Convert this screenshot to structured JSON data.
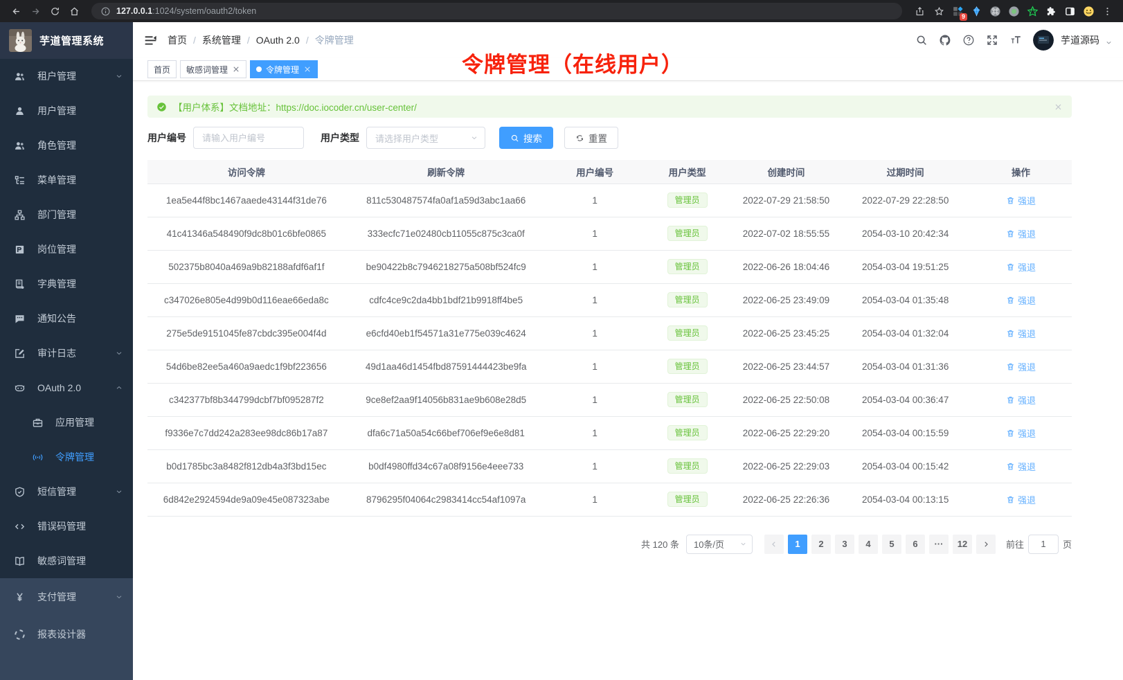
{
  "browser": {
    "url_host": "127.0.0.1",
    "url_path": ":1024/system/oauth2/token",
    "extension_badge": "9",
    "extension_icons": [
      "grid-ext-icon",
      "gem-icon",
      "cmd-circle-icon",
      "record-circle-icon",
      "star-green-icon",
      "puzzle-icon",
      "sidepanel-icon",
      "smiley-icon"
    ]
  },
  "app": {
    "title": "芋道管理系统",
    "user_name": "芋道源码",
    "annotation": "令牌管理（在线用户）",
    "breadcrumb": [
      "首页",
      "系统管理",
      "OAuth 2.0",
      "令牌管理"
    ],
    "tabs": [
      {
        "id": "home",
        "label": "首页",
        "closable": false,
        "active": false
      },
      {
        "id": "sensitive-word",
        "label": "敏感词管理",
        "closable": true,
        "active": false
      },
      {
        "id": "token",
        "label": "令牌管理",
        "closable": true,
        "active": true
      }
    ]
  },
  "sidebar": {
    "sections": [
      {
        "id": "menu-top",
        "items": [
          {
            "id": "tenant",
            "label": "租户管理",
            "icon": "users-icon",
            "chevron": "down"
          },
          {
            "id": "user",
            "label": "用户管理",
            "icon": "user-icon"
          },
          {
            "id": "role",
            "label": "角色管理",
            "icon": "users-icon"
          },
          {
            "id": "menu",
            "label": "菜单管理",
            "icon": "menu-icon"
          },
          {
            "id": "dept",
            "label": "部门管理",
            "icon": "org-icon"
          },
          {
            "id": "post",
            "label": "岗位管理",
            "icon": "badge-icon"
          },
          {
            "id": "dict",
            "label": "字典管理",
            "icon": "dict-icon"
          },
          {
            "id": "notice",
            "label": "通知公告",
            "icon": "message-icon"
          },
          {
            "id": "audit-log",
            "label": "审计日志",
            "icon": "audit-icon",
            "chevron": "down"
          },
          {
            "id": "oauth2",
            "label": "OAuth 2.0",
            "icon": "robot-icon",
            "chevron": "up"
          },
          {
            "id": "oauth2-app",
            "label": "应用管理",
            "icon": "briefcase-icon",
            "child": true
          },
          {
            "id": "oauth2-token",
            "label": "令牌管理",
            "icon": "signal-icon",
            "child": true,
            "active": true
          },
          {
            "id": "sms",
            "label": "短信管理",
            "icon": "shield-icon",
            "chevron": "down"
          },
          {
            "id": "error-code",
            "label": "错误码管理",
            "icon": "code-icon"
          },
          {
            "id": "sensitive-word",
            "label": "敏感词管理",
            "icon": "book-icon"
          }
        ]
      },
      {
        "id": "menu-bottom",
        "items": [
          {
            "id": "pay",
            "label": "支付管理",
            "icon": "yen-icon",
            "chevron": "down"
          },
          {
            "id": "report-designer",
            "label": "报表设计器",
            "icon": "report-icon"
          }
        ]
      }
    ]
  },
  "alert": {
    "prefix": "【用户体系】文档地址：",
    "link": "https://doc.iocoder.cn/user-center/"
  },
  "filters": {
    "user_id_label": "用户编号",
    "user_id_placeholder": "请输入用户编号",
    "user_id_value": "",
    "user_type_label": "用户类型",
    "user_type_placeholder": "请选择用户类型",
    "search_label": "搜索",
    "reset_label": "重置"
  },
  "table": {
    "columns": [
      "访问令牌",
      "刷新令牌",
      "用户编号",
      "用户类型",
      "创建时间",
      "过期时间",
      "操作"
    ],
    "col_widths": [
      "21.4%",
      "21.8%",
      "10.4%",
      "9.6%",
      "11.8%",
      "14%",
      "11%"
    ],
    "user_type_badge": "管理员",
    "action_label": "强退",
    "rows": [
      {
        "access_token": "1ea5e44f8bc1467aaede43144f31de76",
        "refresh_token": "811c530487574fa0af1a59d3abc1aa66",
        "user_id": "1",
        "user_type": "管理员",
        "create_time": "2022-07-29 21:58:50",
        "expire_time": "2022-07-29 22:28:50"
      },
      {
        "access_token": "41c41346a548490f9dc8b01c6bfe0865",
        "refresh_token": "333ecfc71e02480cb11055c875c3ca0f",
        "user_id": "1",
        "user_type": "管理员",
        "create_time": "2022-07-02 18:55:55",
        "expire_time": "2054-03-10 20:42:34"
      },
      {
        "access_token": "502375b8040a469a9b82188afdf6af1f",
        "refresh_token": "be90422b8c7946218275a508bf524fc9",
        "user_id": "1",
        "user_type": "管理员",
        "create_time": "2022-06-26 18:04:46",
        "expire_time": "2054-03-04 19:51:25"
      },
      {
        "access_token": "c347026e805e4d99b0d116eae66eda8c",
        "refresh_token": "cdfc4ce9c2da4bb1bdf21b9918ff4be5",
        "user_id": "1",
        "user_type": "管理员",
        "create_time": "2022-06-25 23:49:09",
        "expire_time": "2054-03-04 01:35:48"
      },
      {
        "access_token": "275e5de9151045fe87cbdc395e004f4d",
        "refresh_token": "e6cfd40eb1f54571a31e775e039c4624",
        "user_id": "1",
        "user_type": "管理员",
        "create_time": "2022-06-25 23:45:25",
        "expire_time": "2054-03-04 01:32:04"
      },
      {
        "access_token": "54d6be82ee5a460a9aedc1f9bf223656",
        "refresh_token": "49d1aa46d1454fbd87591444423be9fa",
        "user_id": "1",
        "user_type": "管理员",
        "create_time": "2022-06-25 23:44:57",
        "expire_time": "2054-03-04 01:31:36"
      },
      {
        "access_token": "c342377bf8b344799dcbf7bf095287f2",
        "refresh_token": "9ce8ef2aa9f14056b831ae9b608e28d5",
        "user_id": "1",
        "user_type": "管理员",
        "create_time": "2022-06-25 22:50:08",
        "expire_time": "2054-03-04 00:36:47"
      },
      {
        "access_token": "f9336e7c7dd242a283ee98dc86b17a87",
        "refresh_token": "dfa6c71a50a54c66bef706ef9e6e8d81",
        "user_id": "1",
        "user_type": "管理员",
        "create_time": "2022-06-25 22:29:20",
        "expire_time": "2054-03-04 00:15:59"
      },
      {
        "access_token": "b0d1785bc3a8482f812db4a3f3bd15ec",
        "refresh_token": "b0df4980ffd34c67a08f9156e4eee733",
        "user_id": "1",
        "user_type": "管理员",
        "create_time": "2022-06-25 22:29:03",
        "expire_time": "2054-03-04 00:15:42"
      },
      {
        "access_token": "6d842e2924594de9a09e45e087323abe",
        "refresh_token": "8796295f04064c2983414cc54af1097a",
        "user_id": "1",
        "user_type": "管理员",
        "create_time": "2022-06-25 22:26:36",
        "expire_time": "2054-03-04 00:13:15"
      }
    ]
  },
  "pagination": {
    "total_label": "共 120 条",
    "per_page_label": "10条/页",
    "pages": [
      "1",
      "2",
      "3",
      "4",
      "5",
      "6",
      "...",
      "12"
    ],
    "active_page": "1",
    "goto_prefix": "前往",
    "goto_value": "1",
    "goto_suffix": "页"
  },
  "colors": {
    "primary_blue": "#409eff",
    "success_green": "#67c23a",
    "sidebar_dark": "#1f2d3d",
    "annotation_red": "#f7220c"
  }
}
